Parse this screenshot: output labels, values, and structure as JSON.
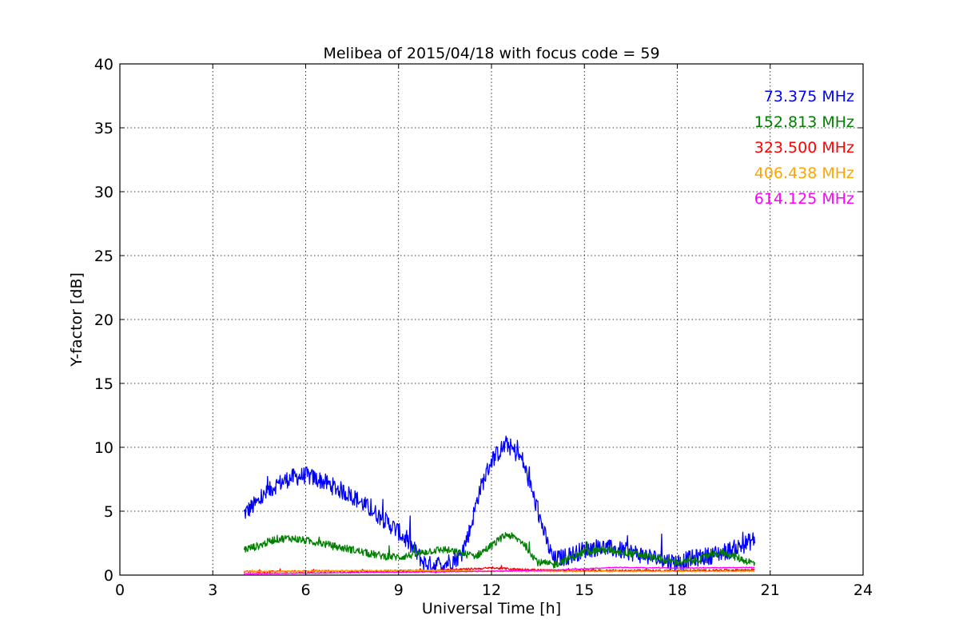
{
  "chart_data": {
    "type": "line",
    "title": "Melibea of 2015/04/18 with focus code = 59",
    "xlabel": "Universal Time [h]",
    "ylabel": "Y-factor [dB]",
    "xlim": [
      0,
      24
    ],
    "ylim": [
      0,
      40
    ],
    "x_ticks": [
      0,
      3,
      6,
      9,
      12,
      15,
      18,
      21,
      24
    ],
    "y_ticks": [
      0,
      5,
      10,
      15,
      20,
      25,
      30,
      35,
      40
    ],
    "x_tick_labels": [
      "0",
      "3",
      "6",
      "9",
      "12",
      "15",
      "18",
      "21",
      "24"
    ],
    "y_tick_labels": [
      "0",
      "5",
      "10",
      "15",
      "20",
      "25",
      "30",
      "35",
      "40"
    ],
    "grid": true,
    "legend_position": "top-right",
    "series": [
      {
        "name": "73.375 MHz",
        "color": "#0000ff",
        "noise": 0.7,
        "x": [
          4.0,
          4.5,
          5.0,
          5.5,
          6.0,
          6.5,
          7.0,
          7.5,
          8.0,
          8.5,
          9.0,
          9.5,
          9.8,
          10.0,
          10.5,
          11.0,
          11.3,
          11.6,
          12.0,
          12.5,
          13.0,
          13.5,
          13.8,
          14.0,
          14.5,
          15.0,
          15.5,
          16.0,
          16.5,
          17.0,
          17.5,
          18.0,
          18.5,
          19.0,
          19.5,
          20.0,
          20.5
        ],
        "y": [
          4.8,
          5.8,
          7.0,
          7.6,
          7.8,
          7.4,
          6.8,
          6.2,
          5.3,
          4.4,
          3.4,
          2.0,
          1.0,
          0.8,
          0.9,
          1.5,
          3.5,
          6.5,
          9.0,
          10.3,
          9.0,
          5.0,
          2.5,
          1.2,
          1.5,
          2.0,
          2.2,
          2.0,
          1.8,
          1.5,
          1.2,
          1.0,
          1.3,
          1.5,
          1.8,
          2.2,
          2.8
        ]
      },
      {
        "name": "152.813 MHz",
        "color": "#008000",
        "noise": 0.3,
        "x": [
          4.0,
          4.5,
          5.0,
          5.5,
          6.0,
          6.5,
          7.0,
          7.5,
          8.0,
          8.5,
          9.0,
          9.5,
          10.0,
          10.5,
          11.0,
          11.5,
          12.0,
          12.5,
          13.0,
          13.5,
          14.0,
          14.5,
          15.0,
          15.5,
          16.0,
          16.5,
          17.0,
          17.5,
          18.0,
          18.5,
          19.0,
          19.5,
          20.0,
          20.5
        ],
        "y": [
          2.0,
          2.3,
          2.8,
          2.9,
          2.7,
          2.5,
          2.2,
          2.0,
          1.7,
          1.5,
          1.4,
          1.6,
          1.9,
          2.0,
          1.7,
          1.5,
          2.3,
          3.2,
          2.6,
          1.0,
          0.8,
          1.3,
          1.8,
          2.0,
          1.9,
          1.7,
          1.5,
          1.2,
          1.0,
          1.1,
          1.5,
          1.8,
          1.3,
          0.9
        ]
      },
      {
        "name": "323.500 MHz",
        "color": "#ff0000",
        "noise": 0.08,
        "x": [
          4.0,
          6.0,
          8.0,
          10.0,
          11.0,
          12.0,
          13.0,
          14.0,
          16.0,
          18.0,
          20.5
        ],
        "y": [
          0.25,
          0.3,
          0.3,
          0.35,
          0.45,
          0.55,
          0.45,
          0.35,
          0.35,
          0.35,
          0.4
        ]
      },
      {
        "name": "406.438 MHz",
        "color": "#ffa500",
        "noise": 0.05,
        "x": [
          4.0,
          6.0,
          8.0,
          10.0,
          12.0,
          14.0,
          16.0,
          18.0,
          20.5
        ],
        "y": [
          0.3,
          0.3,
          0.35,
          0.35,
          0.3,
          0.3,
          0.3,
          0.3,
          0.3
        ]
      },
      {
        "name": "614.125 MHz",
        "color": "#ff00ff",
        "noise": 0.03,
        "x": [
          4.0,
          6.0,
          8.0,
          10.0,
          12.0,
          14.0,
          15.0,
          16.0,
          18.0,
          20.5
        ],
        "y": [
          0.1,
          0.15,
          0.2,
          0.25,
          0.3,
          0.4,
          0.5,
          0.6,
          0.55,
          0.6
        ]
      }
    ]
  }
}
